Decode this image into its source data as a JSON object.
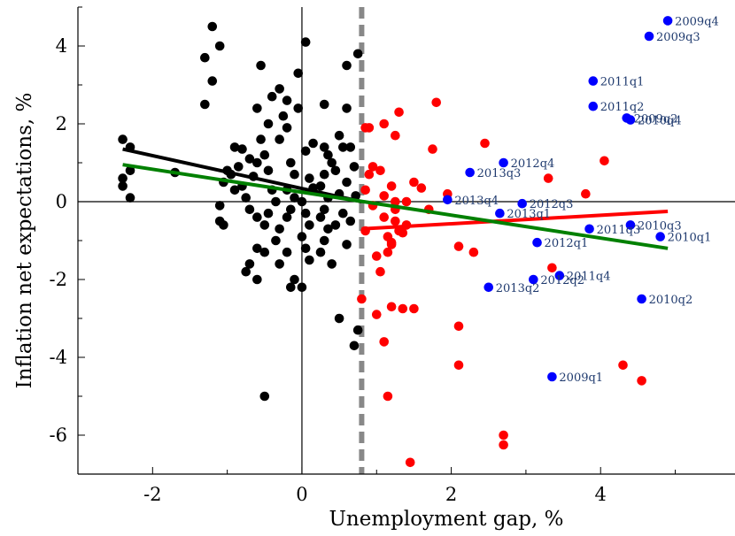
{
  "chart_data": {
    "type": "scatter",
    "title": "",
    "xlabel": "Unemployment gap, %",
    "ylabel": "Inflation net expectations, %",
    "xlim": [
      -3,
      5.8
    ],
    "ylim": [
      -7,
      5
    ],
    "xticks": [
      -2,
      0,
      2,
      4
    ],
    "yticks": [
      -6,
      -4,
      -2,
      0,
      2,
      4
    ],
    "grid": false,
    "threshold_x": 0.8,
    "colors": {
      "black": "#000000",
      "red": "#ff0000",
      "blue": "#0000ff",
      "green": "#008000",
      "threshold": "#888888"
    },
    "series": [
      {
        "color": "black",
        "points": [
          [
            -2.4,
            1.6
          ],
          [
            -2.3,
            1.4
          ],
          [
            -2.3,
            0.8
          ],
          [
            -2.4,
            0.6
          ],
          [
            -2.3,
            0.1
          ],
          [
            -2.4,
            0.4
          ],
          [
            -1.7,
            0.75
          ],
          [
            -1.2,
            4.5
          ],
          [
            -1.3,
            3.7
          ],
          [
            -1.2,
            3.1
          ],
          [
            -1.3,
            2.5
          ],
          [
            -1.1,
            4.0
          ],
          [
            -0.9,
            1.4
          ],
          [
            -0.8,
            1.35
          ],
          [
            -0.7,
            1.1
          ],
          [
            -0.6,
            1.0
          ],
          [
            -1.0,
            0.8
          ],
          [
            -1.05,
            0.5
          ],
          [
            -0.9,
            0.3
          ],
          [
            -1.1,
            -0.1
          ],
          [
            -1.1,
            -0.5
          ],
          [
            -1.05,
            -0.6
          ],
          [
            -0.95,
            0.7
          ],
          [
            -0.8,
            0.4
          ],
          [
            -0.75,
            0.1
          ],
          [
            -0.7,
            -0.2
          ],
          [
            -0.6,
            -0.4
          ],
          [
            -0.55,
            3.5
          ],
          [
            -0.6,
            2.4
          ],
          [
            -0.45,
            2.0
          ],
          [
            -0.55,
            1.6
          ],
          [
            -0.5,
            1.2
          ],
          [
            -0.45,
            0.8
          ],
          [
            -0.4,
            0.3
          ],
          [
            -0.35,
            0.0
          ],
          [
            -0.45,
            -0.3
          ],
          [
            -0.5,
            -0.6
          ],
          [
            -0.6,
            -1.2
          ],
          [
            -0.5,
            -1.3
          ],
          [
            -0.7,
            -1.6
          ],
          [
            -0.75,
            -1.8
          ],
          [
            -0.6,
            -2.0
          ],
          [
            -0.4,
            2.7
          ],
          [
            -0.3,
            2.9
          ],
          [
            -0.2,
            2.6
          ],
          [
            -0.25,
            2.2
          ],
          [
            -0.3,
            1.6
          ],
          [
            -0.2,
            1.9
          ],
          [
            -0.15,
            1.0
          ],
          [
            -0.1,
            0.7
          ],
          [
            -0.2,
            0.3
          ],
          [
            -0.1,
            0.1
          ],
          [
            -0.15,
            -0.2
          ],
          [
            -0.2,
            -0.4
          ],
          [
            -0.3,
            -0.7
          ],
          [
            -0.35,
            -1.0
          ],
          [
            -0.2,
            -1.3
          ],
          [
            -0.3,
            -1.6
          ],
          [
            -0.1,
            -2.0
          ],
          [
            -0.15,
            -2.2
          ],
          [
            -0.05,
            3.3
          ],
          [
            0.05,
            4.1
          ],
          [
            -0.05,
            2.4
          ],
          [
            0.05,
            1.3
          ],
          [
            0.1,
            0.6
          ],
          [
            0.15,
            0.35
          ],
          [
            0.0,
            0.0
          ],
          [
            0.05,
            -0.3
          ],
          [
            0.1,
            -0.6
          ],
          [
            0.0,
            -0.9
          ],
          [
            0.05,
            -1.2
          ],
          [
            0.1,
            -1.5
          ],
          [
            0.0,
            -2.2
          ],
          [
            0.3,
            2.5
          ],
          [
            0.3,
            1.4
          ],
          [
            0.35,
            1.2
          ],
          [
            0.4,
            1.0
          ],
          [
            0.3,
            0.7
          ],
          [
            0.25,
            0.4
          ],
          [
            0.35,
            0.1
          ],
          [
            0.3,
            -0.2
          ],
          [
            0.25,
            -0.4
          ],
          [
            0.35,
            -0.7
          ],
          [
            0.3,
            -1.0
          ],
          [
            0.25,
            -1.3
          ],
          [
            0.4,
            -1.6
          ],
          [
            0.5,
            1.7
          ],
          [
            0.55,
            1.4
          ],
          [
            0.45,
            0.8
          ],
          [
            0.5,
            0.2
          ],
          [
            0.55,
            -0.3
          ],
          [
            0.45,
            -0.6
          ],
          [
            0.6,
            -1.1
          ],
          [
            0.5,
            -3.0
          ],
          [
            0.6,
            2.4
          ],
          [
            0.6,
            3.5
          ],
          [
            0.65,
            1.4
          ],
          [
            0.7,
            0.9
          ],
          [
            0.6,
            0.5
          ],
          [
            0.65,
            -0.5
          ],
          [
            0.7,
            -3.7
          ],
          [
            0.75,
            -3.3
          ],
          [
            0.75,
            3.8
          ],
          [
            0.72,
            0.15
          ],
          [
            -0.5,
            -5.0
          ],
          [
            0.15,
            1.5
          ],
          [
            -0.85,
            0.9
          ],
          [
            -0.65,
            0.65
          ]
        ]
      },
      {
        "color": "red",
        "points": [
          [
            0.85,
            1.9
          ],
          [
            0.9,
            1.9
          ],
          [
            0.95,
            0.9
          ],
          [
            0.85,
            0.3
          ],
          [
            0.9,
            0.7
          ],
          [
            0.85,
            -0.75
          ],
          [
            0.8,
            -2.5
          ],
          [
            1.0,
            -1.4
          ],
          [
            1.05,
            -1.8
          ],
          [
            1.0,
            -2.9
          ],
          [
            1.1,
            -3.6
          ],
          [
            1.15,
            -5.0
          ],
          [
            1.05,
            0.8
          ],
          [
            1.1,
            2.0
          ],
          [
            1.2,
            0.4
          ],
          [
            1.1,
            -0.4
          ],
          [
            1.15,
            -0.9
          ],
          [
            1.2,
            -1.1
          ],
          [
            1.15,
            -1.3
          ],
          [
            1.2,
            -1.05
          ],
          [
            1.3,
            -0.75
          ],
          [
            1.25,
            -0.5
          ],
          [
            1.35,
            -0.8
          ],
          [
            1.4,
            -0.6
          ],
          [
            1.2,
            -2.7
          ],
          [
            1.35,
            -2.75
          ],
          [
            1.25,
            -0.2
          ],
          [
            1.25,
            1.7
          ],
          [
            1.3,
            2.3
          ],
          [
            1.25,
            0.0
          ],
          [
            1.5,
            0.5
          ],
          [
            1.6,
            0.35
          ],
          [
            1.5,
            -2.75
          ],
          [
            1.45,
            -6.7
          ],
          [
            1.7,
            -0.2
          ],
          [
            1.75,
            1.35
          ],
          [
            1.8,
            2.55
          ],
          [
            1.95,
            0.2
          ],
          [
            2.1,
            -1.15
          ],
          [
            2.3,
            -1.3
          ],
          [
            2.1,
            -3.2
          ],
          [
            2.1,
            -4.2
          ],
          [
            2.45,
            1.5
          ],
          [
            2.7,
            -6.0
          ],
          [
            2.7,
            -6.25
          ],
          [
            3.3,
            0.6
          ],
          [
            3.35,
            -1.7
          ],
          [
            3.8,
            0.2
          ],
          [
            4.05,
            1.05
          ],
          [
            4.3,
            -4.2
          ],
          [
            4.55,
            -4.6
          ],
          [
            1.1,
            0.15
          ],
          [
            1.4,
            0.0
          ],
          [
            0.95,
            -0.1
          ]
        ]
      },
      {
        "color": "blue",
        "points": [
          [
            4.9,
            4.65,
            "2009q4"
          ],
          [
            4.65,
            4.25,
            "2009q3"
          ],
          [
            3.9,
            3.1,
            "2011q1"
          ],
          [
            3.9,
            2.45,
            "2011q2"
          ],
          [
            4.4,
            2.1,
            "2010q4"
          ],
          [
            4.35,
            2.15,
            "2009q2"
          ],
          [
            2.25,
            0.75,
            "2013q3"
          ],
          [
            2.7,
            1.0,
            "2012q4"
          ],
          [
            1.95,
            0.05,
            "2013q4"
          ],
          [
            2.95,
            -0.05,
            "2012q3"
          ],
          [
            2.65,
            -0.3,
            "2013q1"
          ],
          [
            4.4,
            -0.6,
            "2010q3"
          ],
          [
            3.85,
            -0.7,
            "2011q3"
          ],
          [
            4.8,
            -0.9,
            "2010q1"
          ],
          [
            3.15,
            -1.05,
            "2012q1"
          ],
          [
            3.45,
            -1.9,
            "2011q4"
          ],
          [
            3.1,
            -2.0,
            "2012q2"
          ],
          [
            2.5,
            -2.2,
            "2013q2"
          ],
          [
            4.55,
            -2.5,
            "2010q2"
          ],
          [
            3.35,
            -4.5,
            "2009q1"
          ]
        ]
      }
    ],
    "fit_lines": [
      {
        "color": "black",
        "x": [
          -2.4,
          0.8
        ],
        "y": [
          1.35,
          0.0
        ]
      },
      {
        "color": "red",
        "x": [
          0.8,
          4.9
        ],
        "y": [
          -0.7,
          -0.25
        ]
      },
      {
        "color": "green",
        "x": [
          -2.4,
          4.9
        ],
        "y": [
          0.95,
          -1.2
        ]
      }
    ]
  }
}
